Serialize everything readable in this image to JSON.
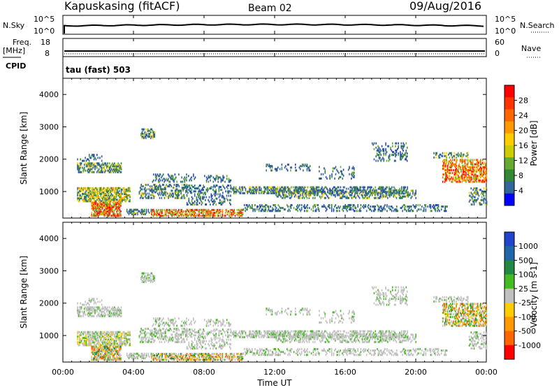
{
  "header": {
    "station": "Kapuskasing (fitACF)",
    "beam": "Beam 02",
    "date": "09/Aug/2016"
  },
  "strip_labels": {
    "nsky": "N.Sky",
    "nsearch": "N.Search",
    "freq": "Freq.",
    "freq_unit": "[MHz]",
    "cpid": "CPID",
    "nave": "Nave",
    "tau": "tau (fast) 503",
    "exp_label_left": "10^5",
    "exp_label_left_low": "10^0",
    "freq_ticks": [
      "18",
      "8"
    ],
    "nave_ticks": [
      "60",
      "0"
    ]
  },
  "chart_data": [
    {
      "type": "heatmap",
      "name": "power",
      "ylabel": "Slant Range [km]",
      "xlabel": "Time UT",
      "xlim": [
        "00:00",
        "00:00"
      ],
      "ylim": [
        180,
        4500
      ],
      "yticks": [
        1000,
        2000,
        3000,
        4000
      ],
      "colorbar_label": "Power [dB]",
      "colorbar_ticks": [
        "28",
        "24",
        "20",
        "16",
        "12",
        "8",
        "4"
      ],
      "colorbar_colors": [
        "#ff0000",
        "#ff3300",
        "#ff6600",
        "#ff9900",
        "#ffcc00",
        "#cccc00",
        "#66aa33",
        "#338833",
        "#336699",
        "#0000ff"
      ]
    },
    {
      "type": "heatmap",
      "name": "velocity",
      "ylabel": "Slant Range [km]",
      "xlabel": "Time UT",
      "xlim": [
        "00:00",
        "00:00"
      ],
      "ylim": [
        180,
        4500
      ],
      "yticks": [
        1000,
        2000,
        3000,
        4000
      ],
      "colorbar_label": "Velocity [m s-1]",
      "colorbar_ticks": [
        "1000",
        "500",
        "100",
        "25",
        "-25",
        "-100",
        "-500",
        "-1000"
      ],
      "colorbar_colors": [
        "#2244cc",
        "#2266aa",
        "#228844",
        "#44bb22",
        "#c0c0c0",
        "#ffcc00",
        "#ff9900",
        "#ff6600",
        "#ff0000"
      ]
    }
  ],
  "x_axis": {
    "ticks": [
      "00:00",
      "04:00",
      "08:00",
      "12:00",
      "16:00",
      "20:00",
      "00:00"
    ],
    "label": "Time UT"
  }
}
